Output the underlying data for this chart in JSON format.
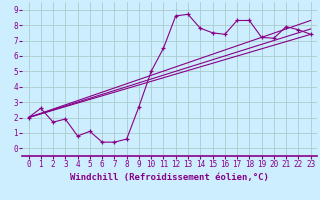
{
  "xlabel": "Windchill (Refroidissement éolien,°C)",
  "bg_color": "#cceeff",
  "grid_color": "#aacccc",
  "line_color": "#880088",
  "separator_color": "#880088",
  "xlim": [
    -0.5,
    23.5
  ],
  "ylim": [
    -0.5,
    9.5
  ],
  "xticks": [
    0,
    1,
    2,
    3,
    4,
    5,
    6,
    7,
    8,
    9,
    10,
    11,
    12,
    13,
    14,
    15,
    16,
    17,
    18,
    19,
    20,
    21,
    22,
    23
  ],
  "yticks": [
    0,
    1,
    2,
    3,
    4,
    5,
    6,
    7,
    8,
    9
  ],
  "scatter_x": [
    0,
    1,
    2,
    3,
    4,
    5,
    6,
    7,
    8,
    9,
    10,
    11,
    12,
    13,
    14,
    15,
    16,
    17,
    18,
    19,
    20,
    21,
    22,
    23
  ],
  "scatter_y": [
    2.0,
    2.6,
    1.7,
    1.9,
    0.8,
    1.1,
    0.4,
    0.4,
    0.6,
    2.7,
    5.0,
    6.5,
    8.6,
    8.7,
    7.8,
    7.5,
    7.4,
    8.3,
    8.3,
    7.2,
    7.15,
    7.9,
    7.7,
    7.4
  ],
  "trend_lines": [
    {
      "x": [
        0,
        23
      ],
      "y": [
        2.0,
        7.4
      ]
    },
    {
      "x": [
        0,
        23
      ],
      "y": [
        2.0,
        8.3
      ]
    },
    {
      "x": [
        0,
        23
      ],
      "y": [
        2.0,
        7.75
      ]
    }
  ],
  "xlabel_color": "#880088",
  "xlabel_fontsize": 6.5,
  "tick_fontsize": 5.5,
  "tick_color": "#880088"
}
